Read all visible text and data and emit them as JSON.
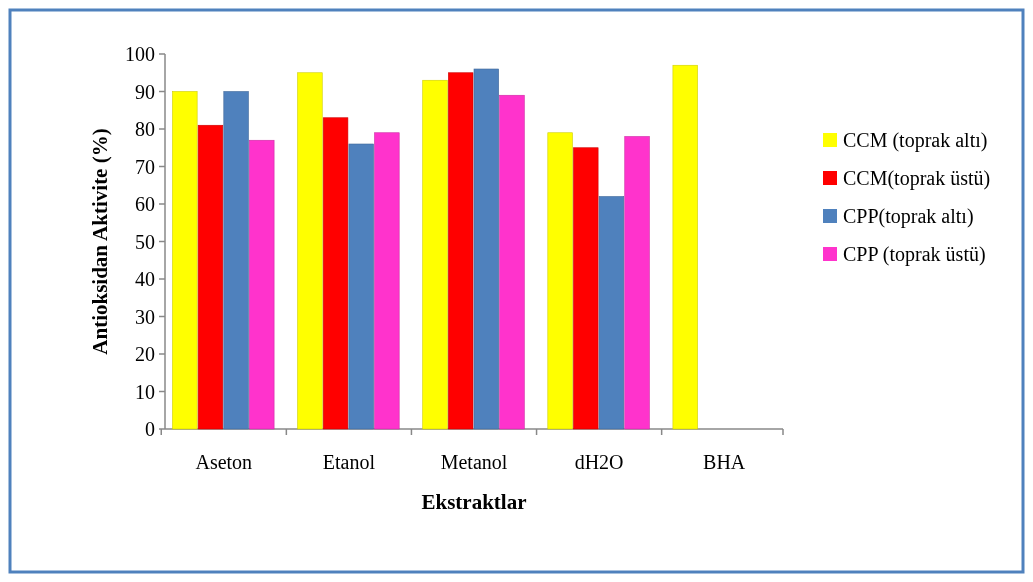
{
  "chart_data": {
    "type": "bar",
    "xlabel": "Ekstraktlar",
    "ylabel": "Antioksidan Aktivite (%)",
    "categories": [
      "Aseton",
      "Etanol",
      "Metanol",
      "dH2O",
      "BHA"
    ],
    "series": [
      {
        "name": "CCM (toprak altı)",
        "color": "#ffff00",
        "values": [
          90,
          95,
          93,
          79,
          97
        ]
      },
      {
        "name": "CCM(toprak üstü)",
        "color": "#ff0000",
        "values": [
          81,
          83,
          95,
          75,
          null
        ]
      },
      {
        "name": "CPP(toprak altı)",
        "color": "#4f81bd",
        "values": [
          90,
          76,
          96,
          62,
          null
        ]
      },
      {
        "name": "CPP (toprak üstü)",
        "color": "#ff33cc",
        "values": [
          77,
          79,
          89,
          78,
          null
        ]
      }
    ],
    "ylim": [
      0,
      100
    ],
    "yticks": [
      0,
      10,
      20,
      30,
      40,
      50,
      60,
      70,
      80,
      90,
      100
    ],
    "legend": "right"
  }
}
